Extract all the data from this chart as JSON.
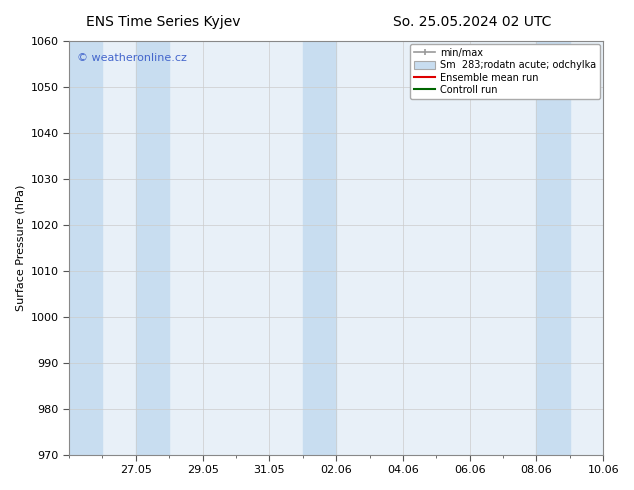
{
  "title_left": "ENS Time Series Kyjev",
  "title_right": "So. 25.05.2024 02 UTC",
  "ylabel": "Surface Pressure (hPa)",
  "ylim": [
    970,
    1060
  ],
  "yticks": [
    970,
    980,
    990,
    1000,
    1010,
    1020,
    1030,
    1040,
    1050,
    1060
  ],
  "xtick_labels": [
    "27.05",
    "29.05",
    "31.05",
    "02.06",
    "04.06",
    "06.06",
    "08.06",
    "10.06"
  ],
  "watermark": "© weatheronline.cz",
  "watermark_color": "#4466cc",
  "bg_color": "#ffffff",
  "plot_bg_color": "#e8f0f8",
  "band_color": "#c8ddf0",
  "legend_labels": [
    "min/max",
    "Sm  283;rodatn acute; odchylka",
    "Ensemble mean run",
    "Controll run"
  ],
  "title_fontsize": 10,
  "axis_label_fontsize": 8,
  "tick_fontsize": 8
}
